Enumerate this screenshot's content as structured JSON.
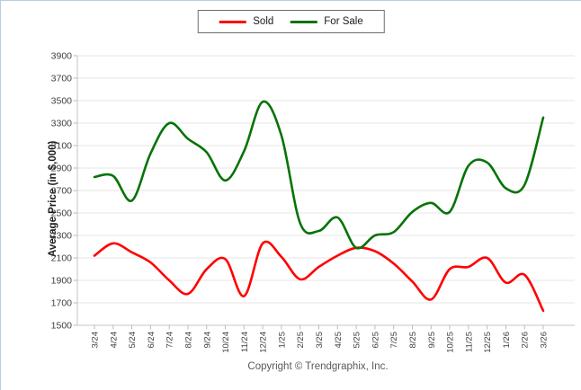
{
  "legend": {
    "items": [
      {
        "label": "Sold",
        "color": "#ff0000"
      },
      {
        "label": "For Sale",
        "color": "#077307"
      }
    ]
  },
  "footer": {
    "copyright": "Copyright © Trendgraphix, Inc."
  },
  "chart_data": {
    "type": "line",
    "title": "",
    "xlabel": "",
    "ylabel": "Average Price (in $,000)",
    "ylim": [
      1500,
      3900
    ],
    "ytick_step": 200,
    "yticks": [
      1500,
      1700,
      1900,
      2100,
      2300,
      2500,
      2700,
      2900,
      3100,
      3300,
      3500,
      3700,
      3900
    ],
    "grid": true,
    "smooth": true,
    "legend_position": "top-center",
    "xtick_rotation": -90,
    "categories": [
      "3/24",
      "4/24",
      "5/24",
      "6/24",
      "7/24",
      "8/24",
      "9/24",
      "10/24",
      "11/24",
      "12/24",
      "1/25",
      "2/25",
      "3/25",
      "4/25",
      "5/25",
      "6/25",
      "7/25",
      "8/25",
      "9/25",
      "10/25",
      "11/25",
      "12/25",
      "1/26",
      "2/26",
      "3/26"
    ],
    "series": [
      {
        "name": "Sold",
        "color": "#ff0000",
        "values": [
          2120,
          2230,
          2150,
          2060,
          1900,
          1780,
          2000,
          2090,
          1760,
          2230,
          2110,
          1910,
          2020,
          2120,
          2190,
          2160,
          2050,
          1890,
          1730,
          2000,
          2020,
          2100,
          1880,
          1950,
          1630
        ]
      },
      {
        "name": "For Sale",
        "color": "#077307",
        "values": [
          2820,
          2830,
          2610,
          3030,
          3300,
          3160,
          3040,
          2790,
          3050,
          3490,
          3190,
          2410,
          2340,
          2460,
          2190,
          2300,
          2330,
          2510,
          2590,
          2510,
          2920,
          2950,
          2720,
          2750,
          3350
        ]
      }
    ]
  }
}
